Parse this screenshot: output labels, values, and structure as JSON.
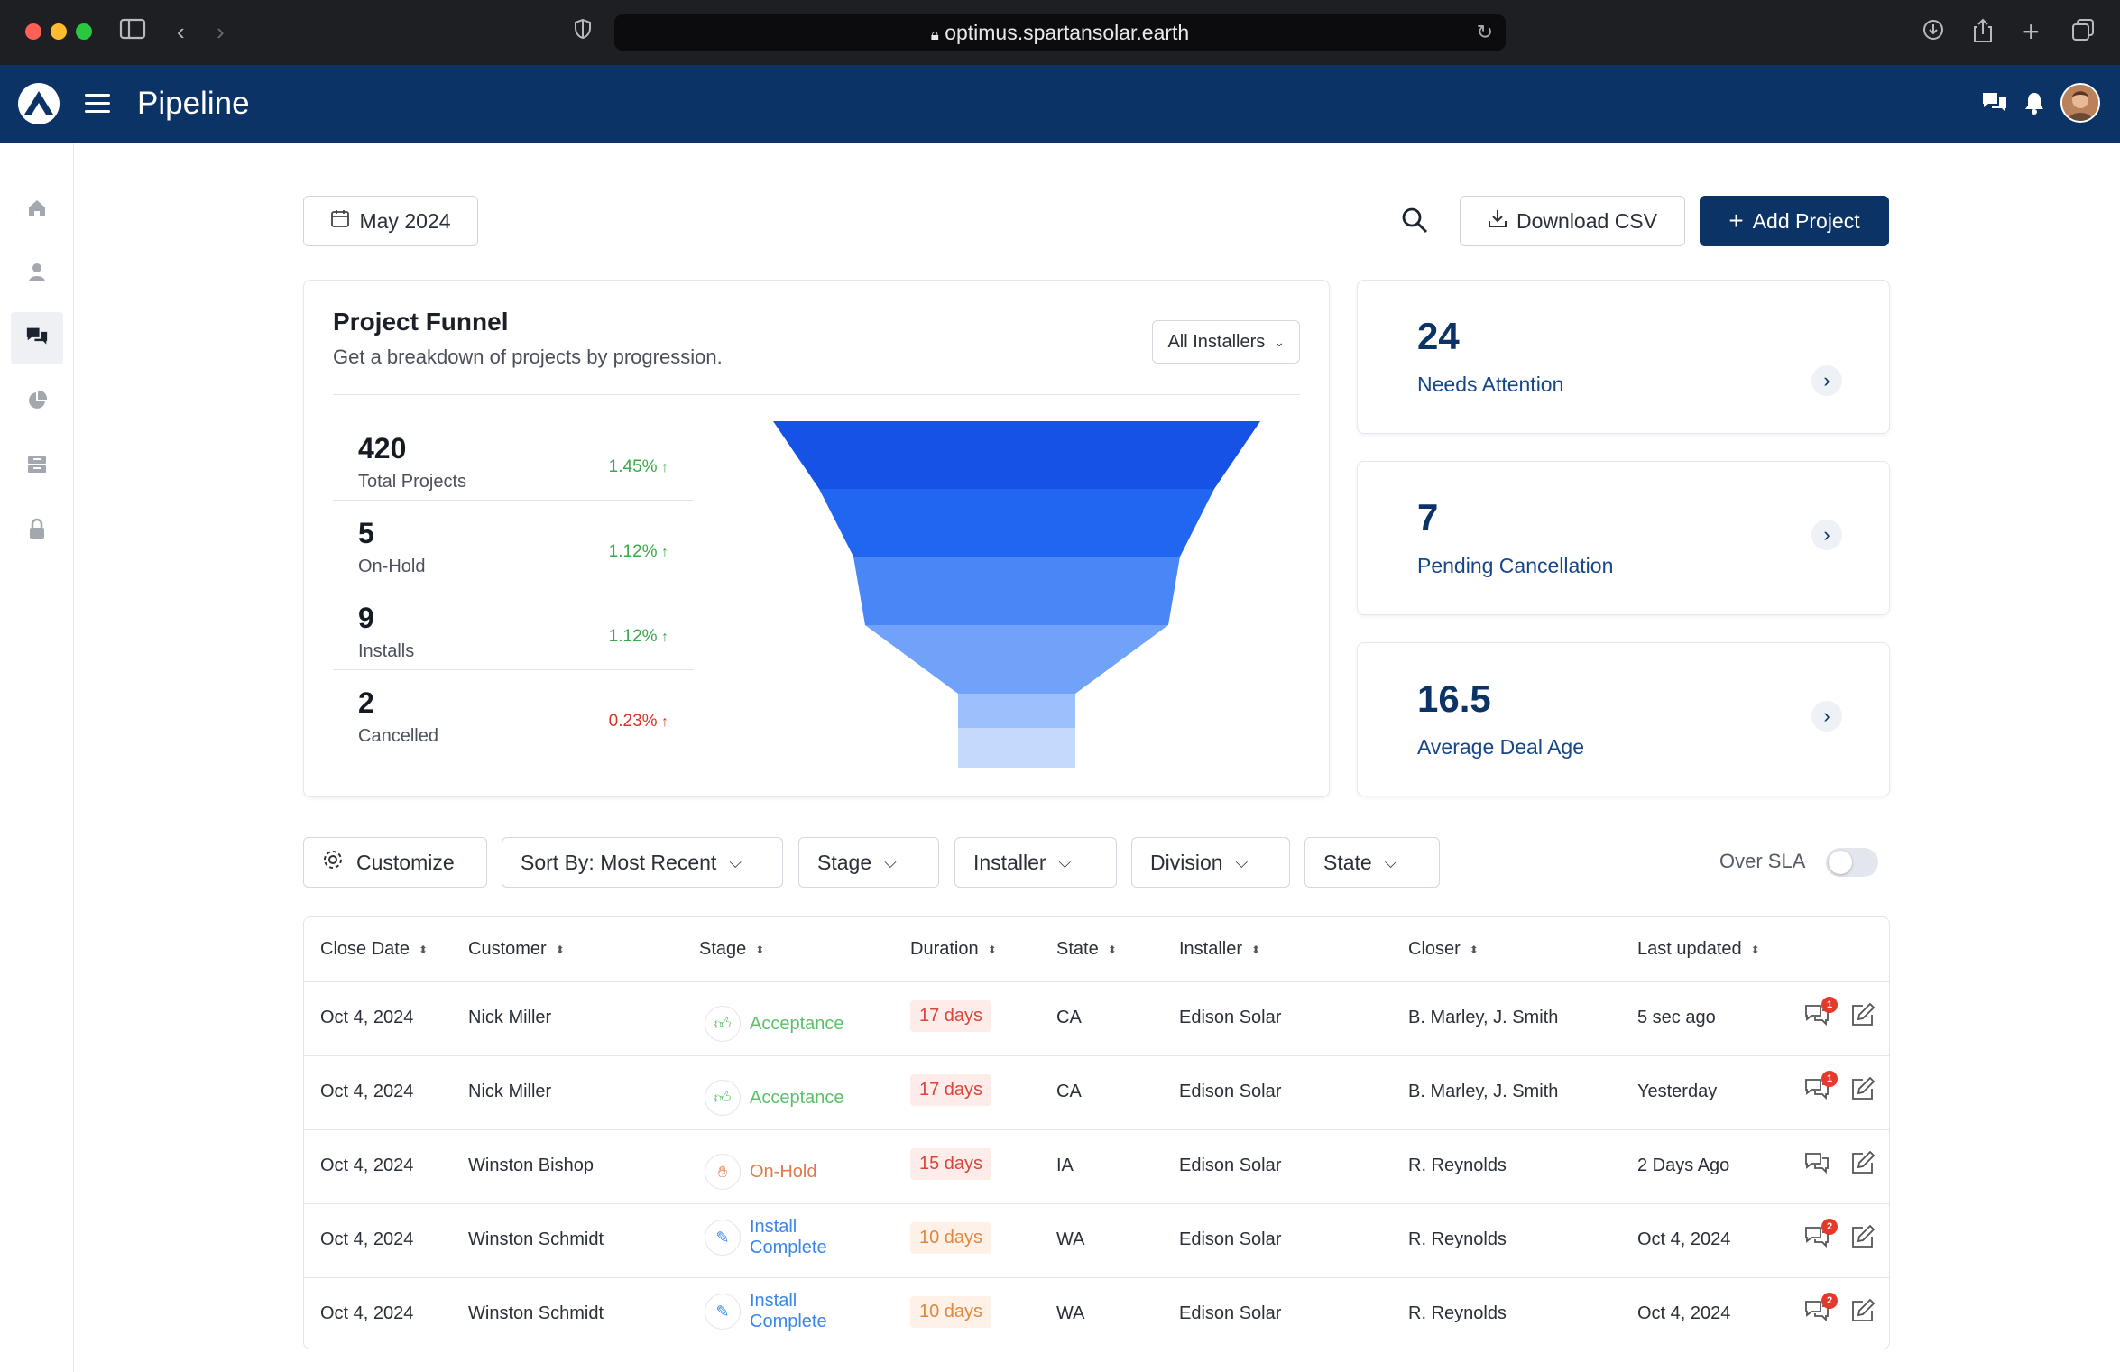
{
  "browser": {
    "url": "optimus.spartansolar.earth"
  },
  "header": {
    "title": "Pipeline"
  },
  "toolbar": {
    "date_label": "May 2024",
    "download_label": "Download CSV",
    "add_label": "Add Project"
  },
  "funnel": {
    "title": "Project Funnel",
    "subtitle": "Get a breakdown of projects by progression.",
    "installer_select": "All Installers",
    "stats": [
      {
        "value": "420",
        "label": "Total Projects",
        "pct": "1.45%",
        "trend": "up",
        "color": "#3aa84a"
      },
      {
        "value": "5",
        "label": "On-Hold",
        "pct": "1.12%",
        "trend": "up",
        "color": "#3aa84a"
      },
      {
        "value": "9",
        "label": "Installs",
        "pct": "1.12%",
        "trend": "up",
        "color": "#3aa84a"
      },
      {
        "value": "2",
        "label": "Cancelled",
        "pct": "0.23%",
        "trend": "up",
        "color": "#d8352a"
      }
    ],
    "colors": [
      "#1652e6",
      "#2166f0",
      "#4a86f5",
      "#6fa2f8",
      "#9cc0fb",
      "#c4dafd"
    ]
  },
  "kpis": [
    {
      "value": "24",
      "label": "Needs Attention"
    },
    {
      "value": "7",
      "label": "Pending Cancellation"
    },
    {
      "value": "16.5",
      "label": "Average Deal Age"
    }
  ],
  "filters": {
    "customize": "Customize",
    "sort": "Sort By: Most Recent",
    "stage": "Stage",
    "installer": "Installer",
    "division": "Division",
    "state": "State",
    "over_sla": "Over SLA",
    "over_sla_on": false
  },
  "table": {
    "columns": [
      "Close Date",
      "Customer",
      "Stage",
      "Duration",
      "State",
      "Installer",
      "Closer",
      "Last updated"
    ],
    "rows": [
      {
        "close": "Oct 4, 2024",
        "customer": "Nick Miller",
        "stage": "Acceptance",
        "stage_type": "accept",
        "duration": "17 days",
        "dur_type": "red",
        "state": "CA",
        "installer": "Edison Solar",
        "closer": "B. Marley, J. Smith",
        "updated": "5 sec ago",
        "badge": "1"
      },
      {
        "close": "Oct 4, 2024",
        "customer": "Nick Miller",
        "stage": "Acceptance",
        "stage_type": "accept",
        "duration": "17 days",
        "dur_type": "red",
        "state": "CA",
        "installer": "Edison Solar",
        "closer": "B. Marley, J. Smith",
        "updated": "Yesterday",
        "badge": "1"
      },
      {
        "close": "Oct 4, 2024",
        "customer": "Winston Bishop",
        "stage": "On-Hold",
        "stage_type": "hold",
        "duration": "15 days",
        "dur_type": "red",
        "state": "IA",
        "installer": "Edison Solar",
        "closer": "R. Reynolds",
        "updated": "2 Days Ago",
        "badge": ""
      },
      {
        "close": "Oct 4, 2024",
        "customer": "Winston Schmidt",
        "stage": "Install Complete",
        "stage_type": "install",
        "duration": "10 days",
        "dur_type": "orange",
        "state": "WA",
        "installer": "Edison Solar",
        "closer": "R. Reynolds",
        "updated": "Oct 4, 2024",
        "badge": "2"
      },
      {
        "close": "Oct 4, 2024",
        "customer": "Winston Schmidt",
        "stage": "Install Complete",
        "stage_type": "install",
        "duration": "10 days",
        "dur_type": "orange",
        "state": "WA",
        "installer": "Edison Solar",
        "closer": "R. Reynolds",
        "updated": "Oct 4, 2024",
        "badge": "2"
      }
    ]
  }
}
